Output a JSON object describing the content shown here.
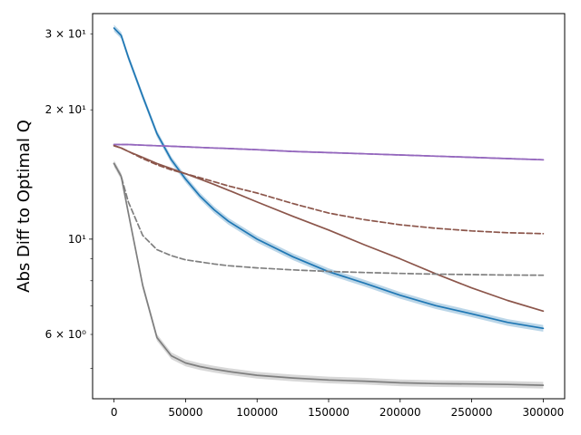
{
  "chart_data": {
    "type": "line",
    "title": "",
    "xlabel": "",
    "ylabel": "Abs Diff to Optimal Q",
    "yscale": "log",
    "xlim": [
      -15000,
      315000
    ],
    "ylim": [
      4.25,
      33.5
    ],
    "grid": false,
    "legend": "none",
    "x_ticks": [
      0,
      50000,
      100000,
      150000,
      200000,
      250000,
      300000
    ],
    "x_tick_labels": [
      "0",
      "50000",
      "100000",
      "150000",
      "200000",
      "250000",
      "300000"
    ],
    "y_major_ticks": [
      10
    ],
    "y_major_tick_labels": [
      "10¹"
    ],
    "y_minor_ticks": [
      5,
      6,
      7,
      8,
      9,
      20,
      30
    ],
    "y_minor_tick_labels": [
      {
        "value": 6,
        "label": "6 × 10⁰"
      },
      {
        "value": 20,
        "label": "2 × 10¹"
      },
      {
        "value": 30,
        "label": "3 × 10¹"
      }
    ],
    "x": [
      0,
      5000,
      10000,
      20000,
      30000,
      40000,
      50000,
      60000,
      70000,
      80000,
      100000,
      125000,
      150000,
      175000,
      200000,
      225000,
      250000,
      275000,
      300000
    ],
    "series": [
      {
        "color": "#1f77b4",
        "style": "solid",
        "band": true,
        "values": [
          31.0,
          29.8,
          26.5,
          21.5,
          17.6,
          15.3,
          13.8,
          12.6,
          11.7,
          11.0,
          10.0,
          9.1,
          8.4,
          7.9,
          7.4,
          7.0,
          6.7,
          6.4,
          6.2
        ]
      },
      {
        "color": "#9467bd",
        "style": "solid",
        "band": false,
        "values": [
          16.6,
          16.6,
          16.6,
          16.55,
          16.5,
          16.45,
          16.4,
          16.35,
          16.3,
          16.25,
          16.15,
          16.0,
          15.9,
          15.8,
          15.7,
          15.6,
          15.5,
          15.4,
          15.3
        ]
      },
      {
        "color": "#9467bd",
        "style": "dashed",
        "band": false,
        "values": [
          16.6,
          16.6,
          16.6,
          16.55,
          16.5,
          16.45,
          16.4,
          16.35,
          16.3,
          16.25,
          16.15,
          16.0,
          15.9,
          15.8,
          15.7,
          15.6,
          15.5,
          15.4,
          15.3
        ]
      },
      {
        "color": "#8c564b",
        "style": "solid",
        "band": false,
        "values": [
          16.5,
          16.3,
          16.0,
          15.5,
          15.0,
          14.6,
          14.2,
          13.8,
          13.4,
          13.0,
          12.2,
          11.3,
          10.5,
          9.7,
          9.0,
          8.3,
          7.7,
          7.2,
          6.8
        ]
      },
      {
        "color": "#8c564b",
        "style": "dashed",
        "band": false,
        "values": [
          16.5,
          16.3,
          16.0,
          15.4,
          14.9,
          14.5,
          14.2,
          13.9,
          13.6,
          13.3,
          12.8,
          12.1,
          11.5,
          11.1,
          10.8,
          10.6,
          10.45,
          10.35,
          10.3
        ]
      },
      {
        "color": "#7f7f7f",
        "style": "solid",
        "band": true,
        "values": [
          15.0,
          14.0,
          11.5,
          7.8,
          5.9,
          5.35,
          5.15,
          5.05,
          4.98,
          4.92,
          4.82,
          4.75,
          4.7,
          4.67,
          4.63,
          4.61,
          4.6,
          4.59,
          4.57
        ]
      },
      {
        "color": "#7f7f7f",
        "style": "dashed",
        "band": false,
        "values": [
          15.0,
          14.0,
          12.2,
          10.2,
          9.45,
          9.15,
          8.95,
          8.85,
          8.75,
          8.67,
          8.57,
          8.48,
          8.41,
          8.36,
          8.32,
          8.29,
          8.27,
          8.25,
          8.24
        ]
      }
    ]
  }
}
